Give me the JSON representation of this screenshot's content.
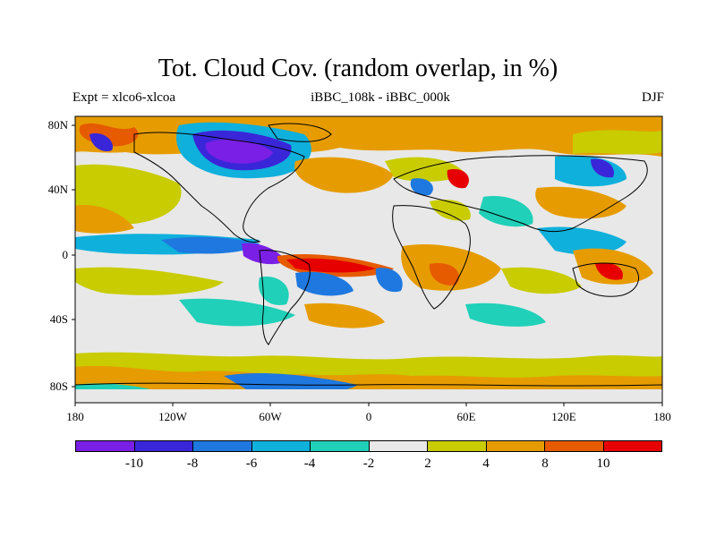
{
  "title": "Tot. Cloud Cov. (random overlap, in %)",
  "subtitle_left": "Expt = xlco6-xlcoa",
  "subtitle_center": "iBBC_108k - iBBC_000k",
  "subtitle_right": "DJF",
  "lat_ticks": [
    "80N",
    "40N",
    "0",
    "40S",
    "80S"
  ],
  "lon_ticks": [
    "180",
    "120W",
    "60W",
    "0",
    "60E",
    "120E",
    "180"
  ],
  "colorbar": {
    "labels": [
      "-10",
      "-8",
      "-6",
      "-4",
      "-2",
      "2",
      "4",
      "8",
      "10"
    ],
    "colors": [
      "#7a1fe6",
      "#3a26d9",
      "#1e78e0",
      "#0fb0dc",
      "#20d0b8",
      "#e8e8e8",
      "#c8cc00",
      "#e69c00",
      "#e65a00",
      "#e60000"
    ]
  },
  "map_colors": {
    "background": "#e8e8e8",
    "coast": "#000000"
  }
}
